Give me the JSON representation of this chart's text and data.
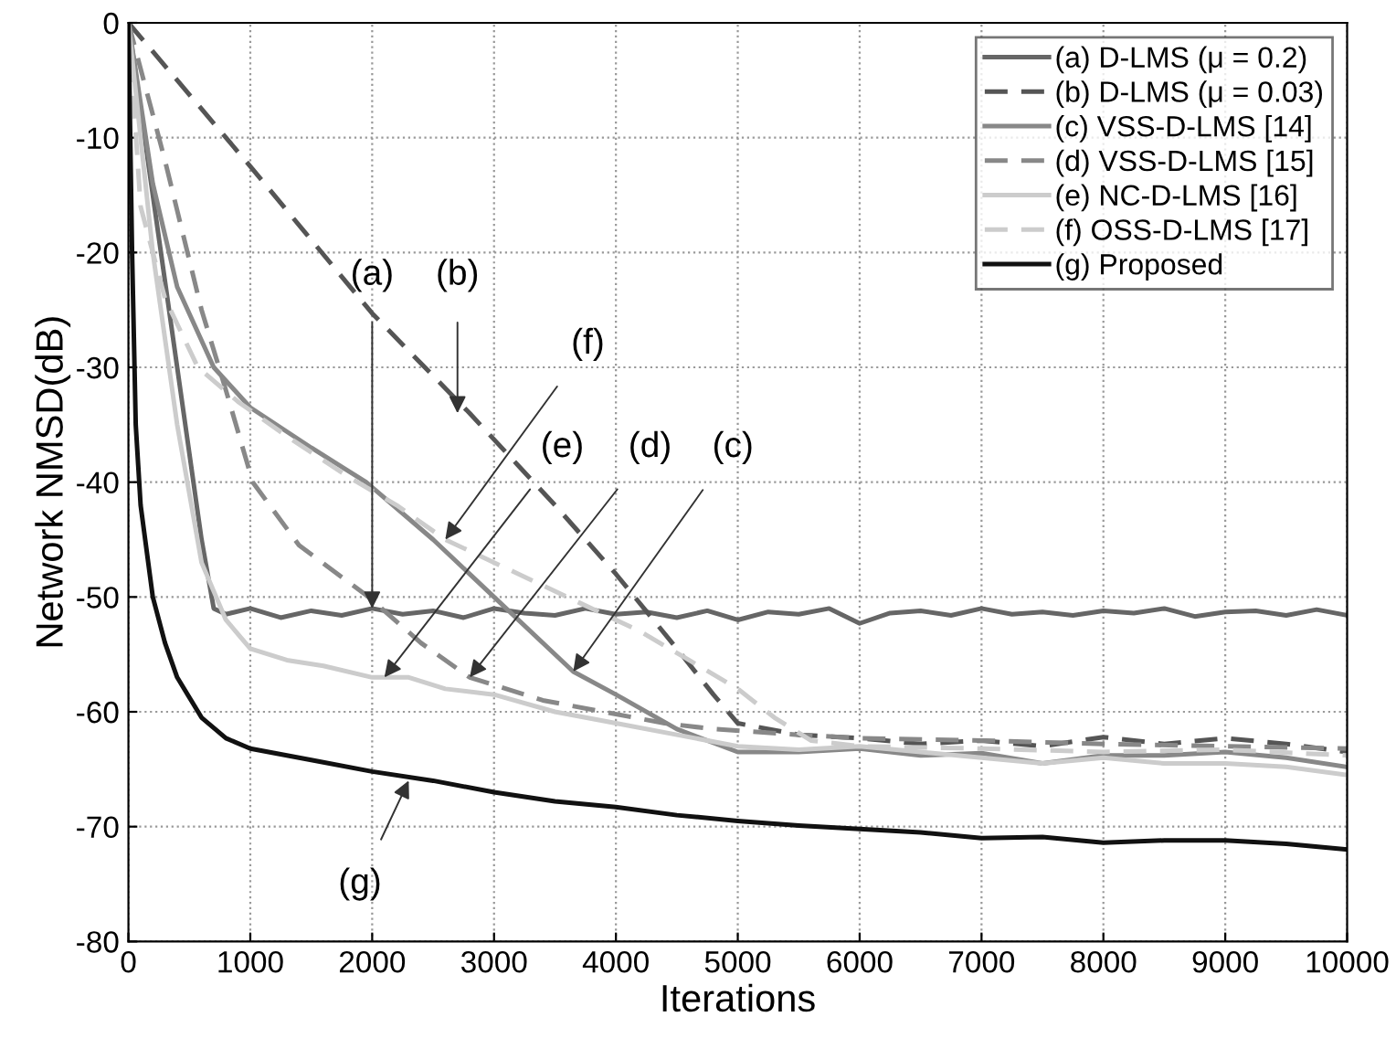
{
  "chart_data": {
    "type": "line",
    "xlabel": "Iterations",
    "ylabel": "Network NMSD(dB)",
    "xlim": [
      0,
      10000
    ],
    "ylim": [
      -80,
      0
    ],
    "xticks": [
      0,
      1000,
      2000,
      3000,
      4000,
      5000,
      6000,
      7000,
      8000,
      9000,
      10000
    ],
    "yticks": [
      -80,
      -70,
      -60,
      -50,
      -40,
      -30,
      -20,
      -10,
      0
    ],
    "grid": true,
    "legend": "top right",
    "marker": "none",
    "series": [
      {
        "name": "(a) D-LMS (μ = 0.2)",
        "color": "#666666",
        "line_style": "solid",
        "x": [
          0,
          200,
          400,
          600,
          700,
          800,
          1000,
          1250,
          1500,
          1750,
          2000,
          2250,
          2500,
          2750,
          3000,
          3250,
          3500,
          3750,
          4000,
          4250,
          4500,
          4750,
          5000,
          5250,
          5500,
          5750,
          6000,
          6250,
          6500,
          6750,
          7000,
          7250,
          7500,
          7750,
          8000,
          8250,
          8500,
          8750,
          9000,
          9250,
          9500,
          9750,
          10000
        ],
        "values": [
          0,
          -15,
          -30,
          -45,
          -51,
          -51.5,
          -51,
          -51.8,
          -51.2,
          -51.6,
          -51,
          -51.5,
          -51.2,
          -51.8,
          -51,
          -51.4,
          -51.6,
          -51,
          -51.5,
          -51.3,
          -51.8,
          -51.2,
          -52,
          -51.3,
          -51.5,
          -51,
          -52.3,
          -51.4,
          -51.2,
          -51.6,
          -51,
          -51.5,
          -51.3,
          -51.6,
          -51.2,
          -51.4,
          -51,
          -51.7,
          -51.3,
          -51.2,
          -51.6,
          -51.1,
          -51.6
        ]
      },
      {
        "name": "(b) D-LMS (μ = 0.03)",
        "color": "#555555",
        "line_style": "dashed",
        "x": [
          0,
          1000,
          2000,
          2800,
          3500,
          4000,
          4500,
          4800,
          5000,
          5500,
          6000,
          6500,
          7000,
          7500,
          8000,
          8500,
          9000,
          9500,
          10000
        ],
        "values": [
          0,
          -12.5,
          -25.3,
          -34,
          -42,
          -48,
          -54.5,
          -58.5,
          -61,
          -62,
          -62.3,
          -62.8,
          -62.5,
          -63,
          -62.2,
          -62.8,
          -62.3,
          -62.8,
          -63.5
        ]
      },
      {
        "name": "(c) VSS-D-LMS [14]",
        "color": "#888888",
        "line_style": "solid",
        "x": [
          0,
          200,
          400,
          700,
          1000,
          1500,
          1950,
          2500,
          3000,
          3650,
          4000,
          4500,
          5000,
          5500,
          6000,
          6500,
          7000,
          7500,
          8000,
          8500,
          9000,
          9500,
          10000
        ],
        "values": [
          0,
          -14,
          -23,
          -30,
          -33.5,
          -37,
          -40,
          -45,
          -50,
          -56.5,
          -58.5,
          -61.5,
          -63.5,
          -63.5,
          -63.2,
          -63.8,
          -63.6,
          -64.5,
          -63.8,
          -63.8,
          -63.5,
          -64,
          -64.8
        ]
      },
      {
        "name": "(d) VSS-D-LMS [15]",
        "color": "#888888",
        "line_style": "dashed",
        "x": [
          0,
          300,
          600,
          800,
          1020,
          1400,
          1970,
          2400,
          2800,
          3400,
          3900,
          4400,
          4800,
          5500,
          6000,
          7000,
          8000,
          9000,
          10000
        ],
        "values": [
          0,
          -12,
          -25,
          -32,
          -40,
          -45.5,
          -50,
          -54,
          -57,
          -59,
          -60,
          -61,
          -61.5,
          -62,
          -62.3,
          -62.5,
          -62.8,
          -63,
          -63.2
        ]
      },
      {
        "name": "(e) NC-D-LMS [16]",
        "color": "#cccccc",
        "line_style": "solid",
        "x": [
          0,
          200,
          400,
          600,
          800,
          1000,
          1300,
          1600,
          2000,
          2300,
          2600,
          3000,
          3500,
          4000,
          4500,
          5000,
          5500,
          6000,
          6500,
          7000,
          7500,
          8000,
          8500,
          9000,
          9500,
          10000
        ],
        "values": [
          0,
          -20,
          -35,
          -47,
          -52,
          -54.5,
          -55.5,
          -56,
          -57,
          -57,
          -58,
          -58.5,
          -60,
          -61,
          -62,
          -63,
          -63.3,
          -63,
          -63.5,
          -64,
          -64.5,
          -64,
          -64.5,
          -64.5,
          -64.8,
          -65.5
        ]
      },
      {
        "name": "(f) OSS-D-LMS [17]",
        "color": "#cccccc",
        "line_style": "dashed",
        "x": [
          0,
          100,
          300,
          570,
          900,
          1300,
          1800,
          2200,
          2600,
          3100,
          3700,
          4200,
          4600,
          5000,
          5300,
          5600,
          6000,
          7000,
          8000,
          9000,
          10000
        ],
        "values": [
          0,
          -16,
          -24,
          -30,
          -33,
          -36,
          -39.5,
          -42,
          -45,
          -47.5,
          -50.5,
          -53,
          -55.5,
          -58,
          -60.5,
          -62.5,
          -63,
          -63.2,
          -63.5,
          -63.3,
          -63.8
        ]
      },
      {
        "name": "(g) Proposed",
        "color": "#111111",
        "line_style": "solid",
        "x": [
          0,
          30,
          60,
          100,
          200,
          300,
          400,
          600,
          800,
          1000,
          1500,
          2000,
          2500,
          3000,
          3500,
          4000,
          4500,
          5000,
          5500,
          6000,
          6500,
          7000,
          7500,
          8000,
          8500,
          9000,
          9500,
          10000
        ],
        "values": [
          0,
          -20,
          -35,
          -42,
          -50,
          -54,
          -57,
          -60.5,
          -62.3,
          -63.2,
          -64.2,
          -65.2,
          -66,
          -67,
          -67.8,
          -68.3,
          -69,
          -69.5,
          -69.9,
          -70.2,
          -70.5,
          -71,
          -70.9,
          -71.4,
          -71.2,
          -71.2,
          -71.5,
          -72
        ]
      }
    ],
    "annotations": [
      {
        "text": "(a)",
        "x": 2000,
        "y": -51
      },
      {
        "text": "(b)",
        "x": 2700,
        "y": -34
      },
      {
        "text": "(f)",
        "x": 2600,
        "y": -45
      },
      {
        "text": "(e)",
        "x": 2100,
        "y": -57
      },
      {
        "text": "(d)",
        "x": 2800,
        "y": -57
      },
      {
        "text": "(c)",
        "x": 3650,
        "y": -56.5
      },
      {
        "text": "(g)",
        "x": 2300,
        "y": -66
      }
    ]
  }
}
